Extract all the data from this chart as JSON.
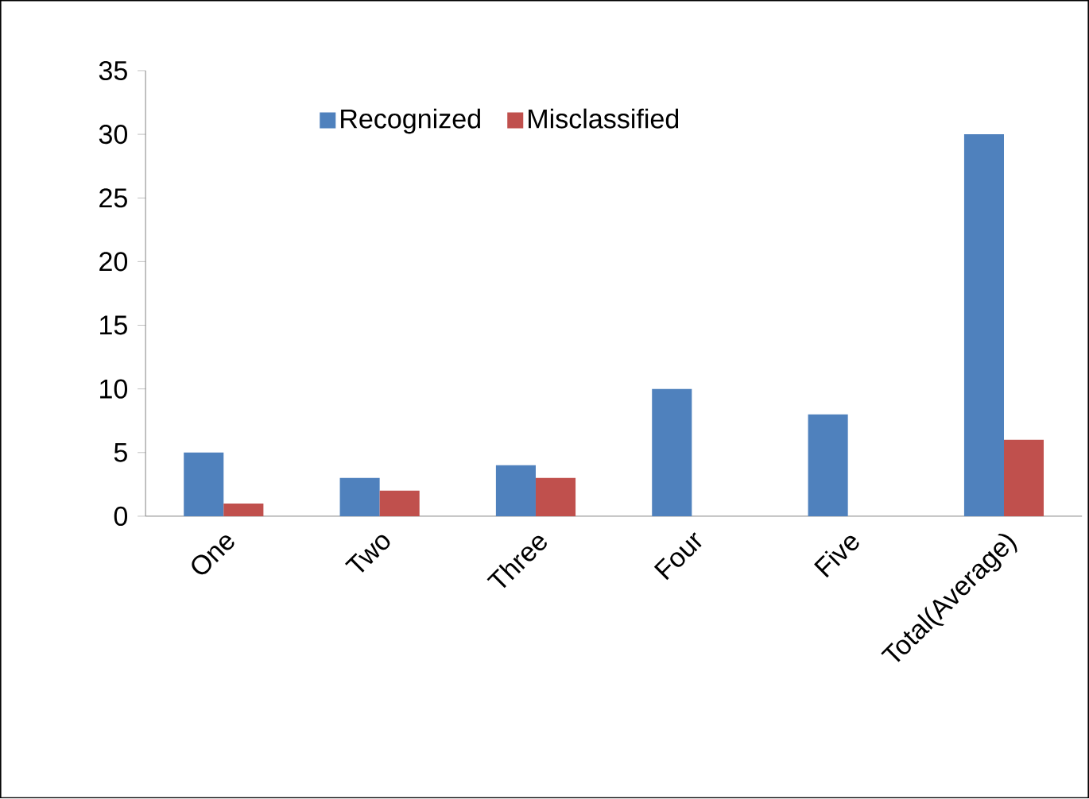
{
  "chart_data": {
    "type": "bar",
    "categories": [
      "One",
      "Two",
      "Three",
      "Four",
      "Five",
      "Total(Average)"
    ],
    "series": [
      {
        "name": "Recognized",
        "color": "#4f81bd",
        "values": [
          5,
          3,
          4,
          10,
          8,
          30
        ]
      },
      {
        "name": "Misclassified",
        "color": "#c0504d",
        "values": [
          1,
          2,
          3,
          0,
          0,
          6
        ]
      }
    ],
    "ylim": [
      0,
      35
    ],
    "yticks": [
      0,
      5,
      10,
      15,
      20,
      25,
      30,
      35
    ],
    "legend": "top",
    "grid": false
  }
}
